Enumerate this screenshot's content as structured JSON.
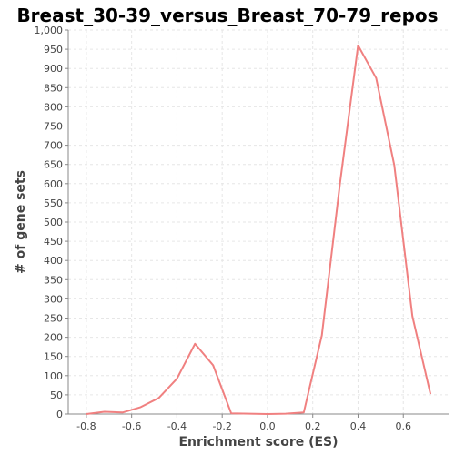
{
  "chart_data": {
    "type": "line",
    "title": "Breast_30-39_versus_Breast_70-79_repos",
    "xlabel": "Enrichment score (ES)",
    "ylabel": "# of gene sets",
    "xlim": [
      -0.88,
      0.8
    ],
    "ylim": [
      0,
      1000
    ],
    "xticks": [
      "-0.8",
      "-0.6",
      "-0.4",
      "-0.2",
      "0.0",
      "0.2",
      "0.4",
      "0.6"
    ],
    "xtick_values": [
      -0.8,
      -0.6,
      -0.4,
      -0.2,
      0.0,
      0.2,
      0.4,
      0.6
    ],
    "yticks": [
      "0",
      "50",
      "100",
      "150",
      "200",
      "250",
      "300",
      "350",
      "400",
      "450",
      "500",
      "550",
      "600",
      "650",
      "700",
      "750",
      "800",
      "850",
      "900",
      "950",
      "1,000"
    ],
    "ytick_values": [
      0,
      50,
      100,
      150,
      200,
      250,
      300,
      350,
      400,
      450,
      500,
      550,
      600,
      650,
      700,
      750,
      800,
      850,
      900,
      950,
      1000
    ],
    "grid": true,
    "series": [
      {
        "color": "#f08080",
        "x": [
          -0.8,
          -0.72,
          -0.64,
          -0.56,
          -0.48,
          -0.4,
          -0.32,
          -0.24,
          -0.16,
          -0.08,
          0.0,
          0.08,
          0.16,
          0.24,
          0.32,
          0.4,
          0.48,
          0.56,
          0.64,
          0.72
        ],
        "y": [
          0,
          6,
          4,
          18,
          42,
          92,
          183,
          127,
          2,
          1,
          0,
          1,
          4,
          205,
          600,
          960,
          875,
          648,
          255,
          52
        ]
      }
    ]
  }
}
